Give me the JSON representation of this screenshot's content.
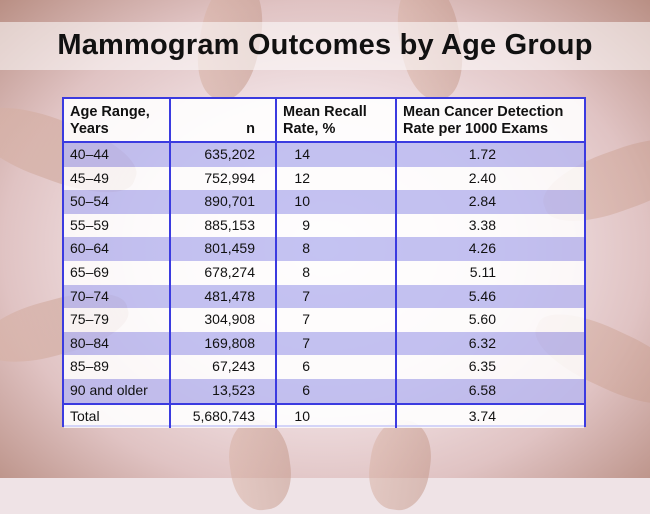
{
  "chart_data": {
    "type": "table",
    "title": "Mammogram Outcomes by Age Group",
    "columns": [
      "Age Range, Years",
      "n",
      "Mean Recall Rate, %",
      "Mean Cancer Detection Rate per 1000 Exams"
    ],
    "rows": [
      [
        "40–44",
        "635,202",
        "14",
        "1.72"
      ],
      [
        "45–49",
        "752,994",
        "12",
        "2.40"
      ],
      [
        "50–54",
        "890,701",
        "10",
        "2.84"
      ],
      [
        "55–59",
        "885,153",
        "9",
        "3.38"
      ],
      [
        "60–64",
        "801,459",
        "8",
        "4.26"
      ],
      [
        "65–69",
        "678,274",
        "8",
        "5.11"
      ],
      [
        "70–74",
        "481,478",
        "7",
        "5.46"
      ],
      [
        "75–79",
        "304,908",
        "7",
        "5.60"
      ],
      [
        "80–84",
        "169,808",
        "7",
        "6.32"
      ],
      [
        "85–89",
        "67,243",
        "6",
        "6.35"
      ],
      [
        "90 and older",
        "13,523",
        "6",
        "6.58"
      ]
    ],
    "total": [
      "Total",
      "5,680,743",
      "10",
      "3.74"
    ]
  },
  "header": {
    "col0_line1": "Age Range,",
    "col0_line2": "Years",
    "col1": "n",
    "col2_line1": "Mean Recall",
    "col2_line2": "Rate, %",
    "col3_line1": "Mean Cancer Detection",
    "col3_line2": "Rate per 1000 Exams"
  }
}
